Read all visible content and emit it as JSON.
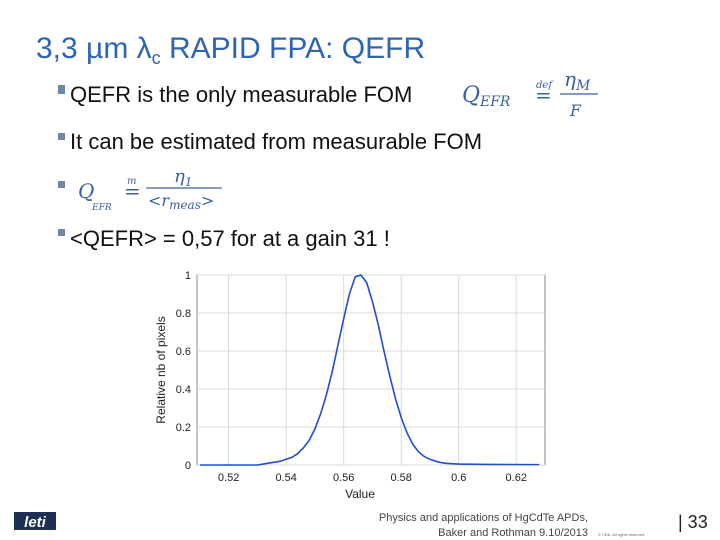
{
  "title": {
    "main": "3,3 µm λ",
    "sub": "c",
    "rest": " RAPID FPA: QEFR"
  },
  "bullets": [
    {
      "text": "QEFR is the only measurable FOM",
      "formula": {
        "symbol": "Q",
        "symbol_sub": "EFR",
        "relation": "=",
        "relation_over": "def",
        "numerator": "η",
        "numerator_sub": "M",
        "denominator": "F"
      }
    },
    {
      "text": "It can be estimated from measurable  FOM"
    },
    {
      "formula": {
        "symbol": "Q",
        "symbol_sub": "EFR",
        "relation": "=",
        "relation_over": "m",
        "numerator": "η",
        "numerator_sub": "1",
        "denominator": "<r",
        "denominator_sub": "meas",
        "denominator_end": ">"
      }
    },
    {
      "text": "<QEFR> = 0,57 for at a gain 31 !"
    }
  ],
  "chart_data": {
    "type": "line",
    "x_label": "Value",
    "y_label": "Relative nb of pixels",
    "x": [
      0.51,
      0.53,
      0.532,
      0.534,
      0.536,
      0.538,
      0.54,
      0.542,
      0.544,
      0.546,
      0.548,
      0.55,
      0.552,
      0.554,
      0.556,
      0.558,
      0.56,
      0.562,
      0.564,
      0.566,
      0.568,
      0.57,
      0.572,
      0.574,
      0.576,
      0.578,
      0.58,
      0.582,
      0.584,
      0.586,
      0.588,
      0.59,
      0.592,
      0.594,
      0.596,
      0.6,
      0.61,
      0.628
    ],
    "series": [
      {
        "color": "#1f4fd0",
        "values": [
          0,
          0,
          0.005,
          0.01,
          0.015,
          0.02,
          0.03,
          0.04,
          0.06,
          0.09,
          0.13,
          0.19,
          0.27,
          0.37,
          0.49,
          0.63,
          0.77,
          0.9,
          0.99,
          1.0,
          0.96,
          0.86,
          0.74,
          0.6,
          0.47,
          0.35,
          0.25,
          0.17,
          0.11,
          0.07,
          0.045,
          0.03,
          0.02,
          0.012,
          0.008,
          0.005,
          0.003,
          0.002
        ]
      }
    ],
    "xlim": [
      0.509,
      0.63
    ],
    "ylim": [
      0,
      1
    ],
    "xticks": [
      0.52,
      0.54,
      0.56,
      0.58,
      0.6,
      0.62
    ],
    "yticks": [
      0,
      0.2,
      0.4,
      0.6,
      0.8,
      1
    ],
    "grid": true
  },
  "footer": {
    "logo": "leti",
    "line1": "Physics and applications of HgCdTe APDs,",
    "line2": "Baker and Rothman  9.10/2013",
    "copyright": "© CEA. All rights reserved",
    "page": "| 33"
  }
}
